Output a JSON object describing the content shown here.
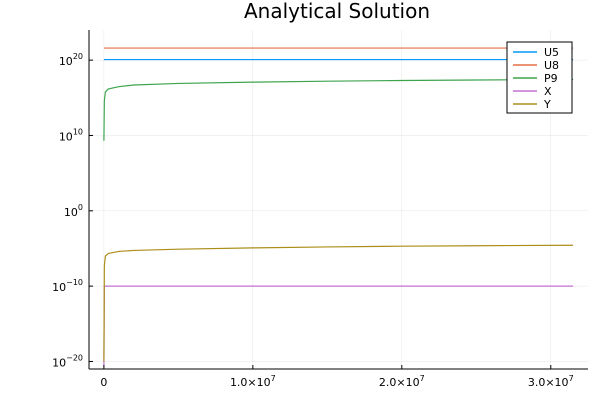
{
  "chart_data": {
    "type": "line",
    "title": "Analytical Solution",
    "xlabel": "",
    "ylabel": "",
    "yscale": "log",
    "xlim": [
      -1000000,
      32500000
    ],
    "ylim": [
      1e-21,
      1e+24
    ],
    "grid": true,
    "legend_position": "top-right",
    "x_ticks": [
      {
        "value": 0,
        "base": "0",
        "exp": ""
      },
      {
        "value": 10000000,
        "base": "1.0×10",
        "exp": "7"
      },
      {
        "value": 20000000,
        "base": "2.0×10",
        "exp": "7"
      },
      {
        "value": 30000000,
        "base": "3.0×10",
        "exp": "7"
      }
    ],
    "y_ticks": [
      {
        "value": 1e-20,
        "base": "10",
        "exp": "−20"
      },
      {
        "value": 1e-10,
        "base": "10",
        "exp": "−10"
      },
      {
        "value": 1,
        "base": "10",
        "exp": "0"
      },
      {
        "value": 10000000000.0,
        "base": "10",
        "exp": "10"
      },
      {
        "value": 1e+20,
        "base": "10",
        "exp": "20"
      }
    ],
    "series": [
      {
        "name": "U5",
        "color": "#009af9",
        "x": [
          0,
          31500000
        ],
        "y": [
          1.2e+20,
          1.2e+20
        ]
      },
      {
        "name": "U8",
        "color": "#e26f46",
        "x": [
          0,
          31500000
        ],
        "y": [
          4e+21,
          4e+21
        ]
      },
      {
        "name": "P9",
        "color": "#3da44d",
        "x": [
          0,
          30000,
          100000,
          300000,
          1000000,
          2000000,
          5000000,
          10000000,
          15000000,
          20000000,
          25000000,
          31500000
        ],
        "y": [
          2000000000.0,
          400000000000000.0,
          6000000000000000.0,
          1.5e+16,
          3e+16,
          5e+16,
          8e+16,
          1.2e+17,
          1.6e+17,
          2e+17,
          2.3e+17,
          2.7e+17
        ]
      },
      {
        "name": "X",
        "color": "#c271d2",
        "x": [
          0,
          30000,
          100000,
          31500000
        ],
        "y": [
          2e-21,
          1e-10,
          1e-10,
          1e-10
        ]
      },
      {
        "name": "Y",
        "color": "#ac8d18",
        "x": [
          0,
          30000,
          100000,
          300000,
          1000000,
          2000000,
          5000000,
          10000000,
          15000000,
          20000000,
          25000000,
          31500000
        ],
        "y": [
          1e-20,
          5e-08,
          1e-06,
          2.2e-06,
          4e-06,
          5.5e-06,
          8e-06,
          1.2e-05,
          1.6e-05,
          2e-05,
          2.3e-05,
          2.7e-05
        ]
      }
    ]
  }
}
